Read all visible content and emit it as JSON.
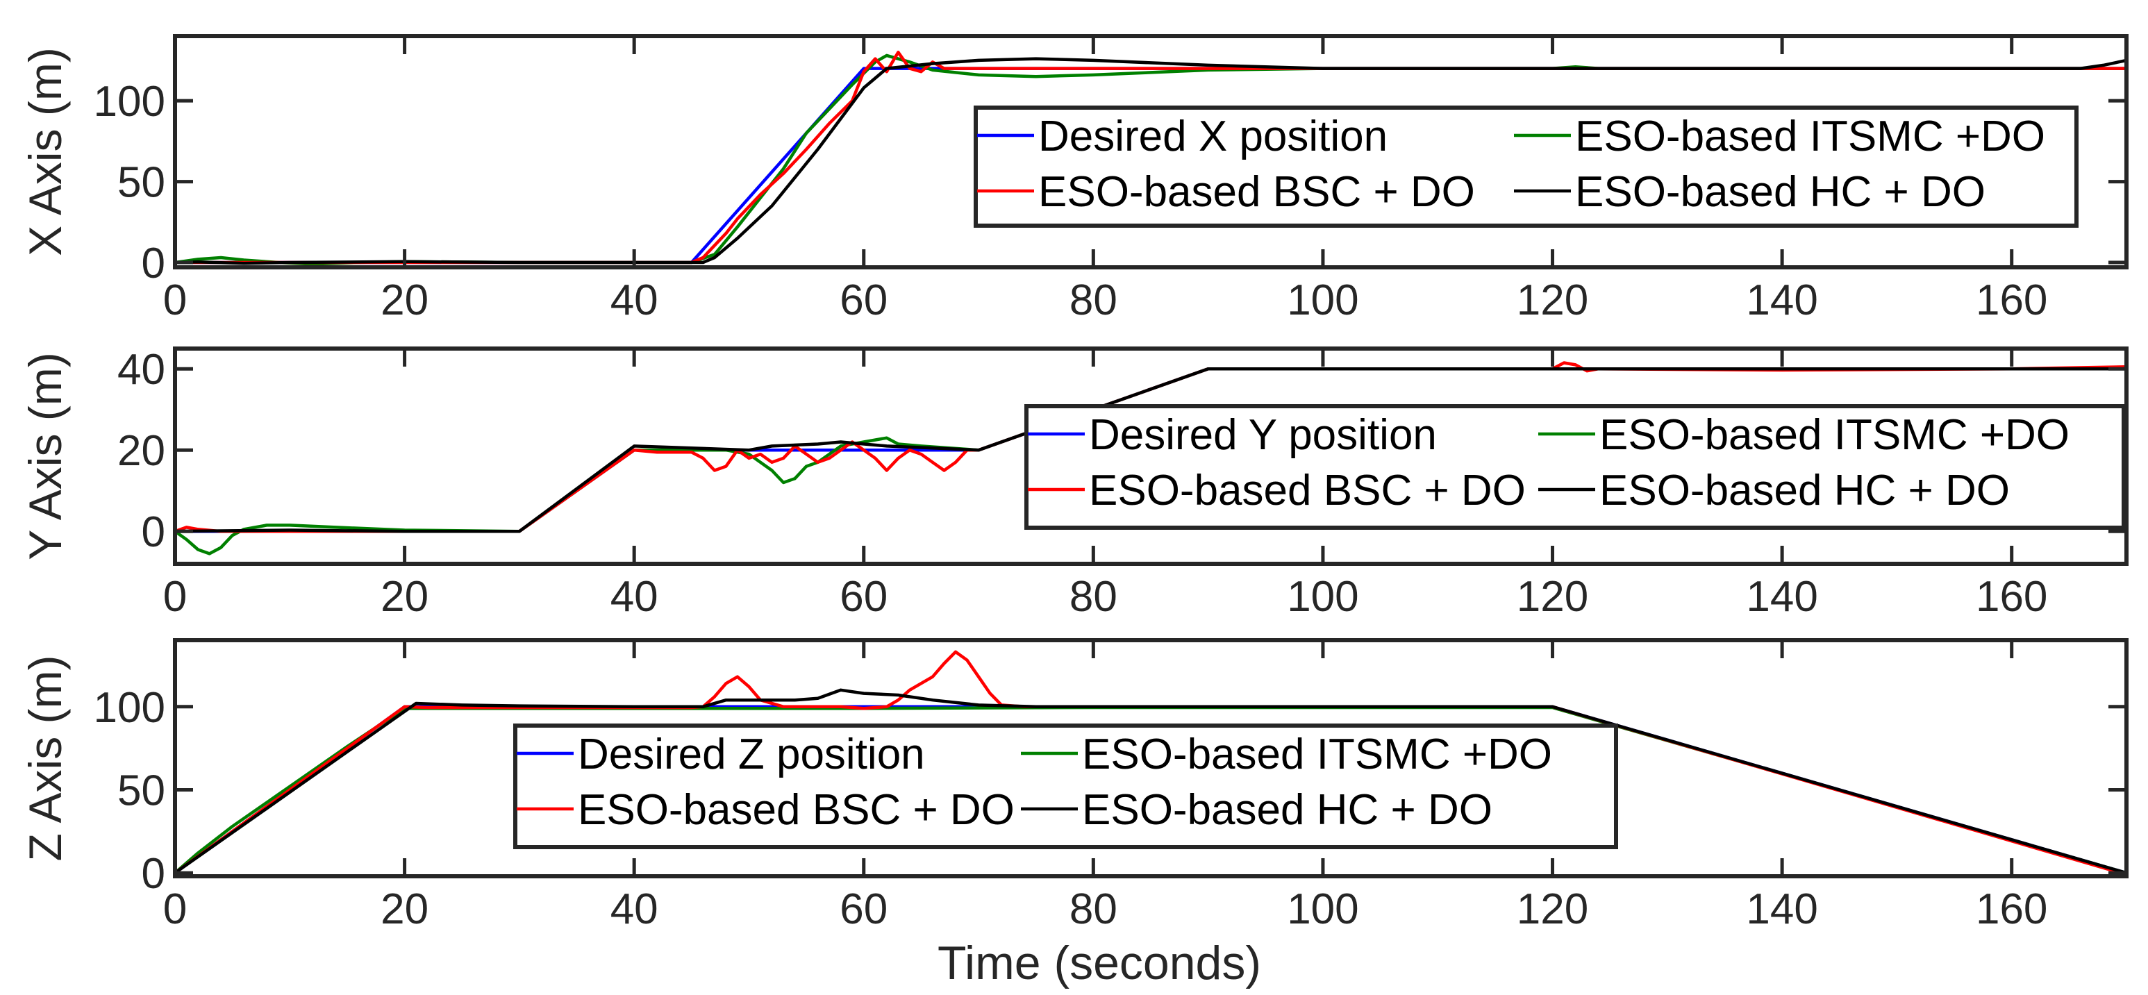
{
  "chart_data": [
    {
      "type": "line",
      "xlabel": "",
      "ylabel": "X Axis (m)",
      "xlim": [
        0,
        170
      ],
      "ylim": [
        -3,
        140
      ],
      "xticks": [
        0,
        20,
        40,
        60,
        80,
        100,
        120,
        140,
        160
      ],
      "yticks": [
        0,
        50,
        100
      ],
      "series": [
        {
          "name": "Desired X position",
          "color": "#0000ff",
          "points": [
            [
              0,
              0
            ],
            [
              45,
              0
            ],
            [
              60,
              120
            ],
            [
              170,
              120
            ]
          ]
        },
        {
          "name": "ESO-based ITSMC +DO",
          "color": "#008000",
          "points": [
            [
              0,
              0
            ],
            [
              2,
              2
            ],
            [
              4,
              3
            ],
            [
              6,
              1.5
            ],
            [
              9,
              0
            ],
            [
              12,
              -1
            ],
            [
              16,
              0
            ],
            [
              20,
              0.5
            ],
            [
              30,
              0
            ],
            [
              45,
              0
            ],
            [
              47,
              5
            ],
            [
              49,
              22
            ],
            [
              51,
              40
            ],
            [
              53,
              58
            ],
            [
              55,
              80
            ],
            [
              57,
              95
            ],
            [
              59,
              110
            ],
            [
              61,
              124
            ],
            [
              62,
              128
            ],
            [
              64,
              124
            ],
            [
              66,
              119
            ],
            [
              70,
              116
            ],
            [
              75,
              115
            ],
            [
              80,
              116
            ],
            [
              90,
              119
            ],
            [
              100,
              120
            ],
            [
              120,
              120
            ],
            [
              122,
              121
            ],
            [
              124,
              120
            ],
            [
              170,
              120
            ]
          ]
        },
        {
          "name": "ESO-based BSC + DO",
          "color": "#ff0000",
          "points": [
            [
              0,
              0
            ],
            [
              45,
              0
            ],
            [
              46,
              3
            ],
            [
              48,
              18
            ],
            [
              49,
              27
            ],
            [
              51,
              42
            ],
            [
              53,
              55
            ],
            [
              55,
              70
            ],
            [
              57,
              86
            ],
            [
              59,
              100
            ],
            [
              60,
              118
            ],
            [
              61,
              126
            ],
            [
              62,
              118
            ],
            [
              63,
              130
            ],
            [
              64,
              120
            ],
            [
              65,
              118
            ],
            [
              66,
              124
            ],
            [
              67,
              120
            ],
            [
              70,
              120
            ],
            [
              170,
              120
            ]
          ]
        },
        {
          "name": "ESO-based HC + DO",
          "color": "#000000",
          "points": [
            [
              0,
              0
            ],
            [
              2,
              0.3
            ],
            [
              6,
              -0.5
            ],
            [
              10,
              0
            ],
            [
              20,
              0.5
            ],
            [
              30,
              0
            ],
            [
              46,
              0
            ],
            [
              47,
              3
            ],
            [
              49,
              15
            ],
            [
              52,
              35
            ],
            [
              56,
              70
            ],
            [
              60,
              108
            ],
            [
              62,
              120
            ],
            [
              66,
              123
            ],
            [
              70,
              125
            ],
            [
              75,
              126
            ],
            [
              80,
              125
            ],
            [
              90,
              122
            ],
            [
              100,
              120
            ],
            [
              130,
              120
            ],
            [
              160,
              120
            ],
            [
              166,
              120
            ],
            [
              168,
              122
            ],
            [
              170,
              125
            ]
          ]
        }
      ],
      "legend": {
        "location": "right",
        "entries": [
          "Desired X position",
          "ESO-based ITSMC +DO",
          "ESO-based BSC + DO",
          "ESO-based HC + DO"
        ]
      }
    },
    {
      "type": "line",
      "xlabel": "",
      "ylabel": "Y Axis (m)",
      "xlim": [
        0,
        170
      ],
      "ylim": [
        -8,
        45
      ],
      "xticks": [
        0,
        20,
        40,
        60,
        80,
        100,
        120,
        140,
        160
      ],
      "yticks": [
        0,
        20,
        40
      ],
      "series": [
        {
          "name": "Desired Y position",
          "color": "#0000ff",
          "points": [
            [
              0,
              0
            ],
            [
              30,
              0
            ],
            [
              40,
              20
            ],
            [
              70,
              20
            ],
            [
              90,
              40
            ],
            [
              170,
              40
            ]
          ]
        },
        {
          "name": "ESO-based ITSMC +DO",
          "color": "#008000",
          "points": [
            [
              0,
              0
            ],
            [
              1,
              -2
            ],
            [
              2,
              -4.5
            ],
            [
              3,
              -5.5
            ],
            [
              4,
              -4
            ],
            [
              5,
              -1
            ],
            [
              6,
              0.5
            ],
            [
              8,
              1.5
            ],
            [
              10,
              1.5
            ],
            [
              14,
              1
            ],
            [
              20,
              0.3
            ],
            [
              30,
              0
            ],
            [
              34,
              8
            ],
            [
              38,
              16
            ],
            [
              40,
              20
            ],
            [
              45,
              20
            ],
            [
              48,
              20
            ],
            [
              50,
              19
            ],
            [
              51,
              17
            ],
            [
              52,
              15
            ],
            [
              53,
              12
            ],
            [
              54,
              13
            ],
            [
              55,
              16
            ],
            [
              56,
              17
            ],
            [
              57,
              19
            ],
            [
              58,
              21
            ],
            [
              60,
              22
            ],
            [
              62,
              23
            ],
            [
              63,
              21.5
            ],
            [
              65,
              21
            ],
            [
              70,
              20
            ],
            [
              74,
              24
            ],
            [
              80,
              30
            ],
            [
              85,
              35
            ],
            [
              90,
              40
            ],
            [
              170,
              40
            ]
          ]
        },
        {
          "name": "ESO-based BSC + DO",
          "color": "#ff0000",
          "points": [
            [
              0,
              0
            ],
            [
              1,
              1
            ],
            [
              2,
              0.5
            ],
            [
              4,
              0
            ],
            [
              30,
              0
            ],
            [
              40,
              20
            ],
            [
              42,
              19.5
            ],
            [
              45,
              19.5
            ],
            [
              46,
              18
            ],
            [
              47,
              15
            ],
            [
              48,
              16
            ],
            [
              49,
              20
            ],
            [
              50,
              18
            ],
            [
              51,
              19
            ],
            [
              52,
              17
            ],
            [
              53,
              18
            ],
            [
              54,
              21
            ],
            [
              55,
              19
            ],
            [
              56,
              17
            ],
            [
              57,
              18
            ],
            [
              58,
              20
            ],
            [
              59,
              22
            ],
            [
              60,
              20
            ],
            [
              61,
              18
            ],
            [
              62,
              15
            ],
            [
              63,
              18
            ],
            [
              64,
              20
            ],
            [
              65,
              19
            ],
            [
              66,
              17
            ],
            [
              67,
              15
            ],
            [
              68,
              17
            ],
            [
              69,
              20
            ],
            [
              70,
              20
            ],
            [
              90,
              40
            ],
            [
              120,
              40
            ],
            [
              121,
              41.5
            ],
            [
              122,
              41
            ],
            [
              123,
              39.5
            ],
            [
              124,
              40
            ],
            [
              140,
              39.7
            ],
            [
              160,
              40
            ],
            [
              170,
              40.5
            ]
          ]
        },
        {
          "name": "ESO-based HC + DO",
          "color": "#000000",
          "points": [
            [
              0,
              0
            ],
            [
              10,
              0.3
            ],
            [
              20,
              0
            ],
            [
              30,
              0
            ],
            [
              40,
              21
            ],
            [
              45,
              20.5
            ],
            [
              50,
              20
            ],
            [
              52,
              21
            ],
            [
              56,
              21.5
            ],
            [
              58,
              22
            ],
            [
              62,
              21
            ],
            [
              66,
              20.5
            ],
            [
              70,
              20
            ],
            [
              90,
              40
            ],
            [
              130,
              40
            ],
            [
              150,
              40
            ],
            [
              170,
              40
            ]
          ]
        }
      ],
      "legend": {
        "location": "right",
        "entries": [
          "Desired Y position",
          "ESO-based ITSMC +DO",
          "ESO-based BSC + DO",
          "ESO-based HC + DO"
        ]
      }
    },
    {
      "type": "line",
      "xlabel": "Time (seconds)",
      "ylabel": "Z Axis (m)",
      "xlim": [
        0,
        170
      ],
      "ylim": [
        -2,
        140
      ],
      "xticks": [
        0,
        20,
        40,
        60,
        80,
        100,
        120,
        140,
        160
      ],
      "yticks": [
        0,
        50,
        100
      ],
      "series": [
        {
          "name": "Desired Z position",
          "color": "#0000ff",
          "points": [
            [
              0,
              0
            ],
            [
              20,
              100
            ],
            [
              120,
              100
            ],
            [
              170,
              0
            ]
          ]
        },
        {
          "name": "ESO-based ITSMC +DO",
          "color": "#008000",
          "points": [
            [
              0,
              0
            ],
            [
              2,
              12
            ],
            [
              5,
              28
            ],
            [
              10,
              52
            ],
            [
              15,
              76
            ],
            [
              20,
              99
            ],
            [
              22,
              99
            ],
            [
              30,
              99
            ],
            [
              40,
              99
            ],
            [
              60,
              99
            ],
            [
              80,
              99.5
            ],
            [
              100,
              99.5
            ],
            [
              120,
              99.5
            ],
            [
              170,
              0
            ]
          ]
        },
        {
          "name": "ESO-based BSC + DO",
          "color": "#ff0000",
          "points": [
            [
              0,
              0
            ],
            [
              20,
              100
            ],
            [
              22,
              99.5
            ],
            [
              30,
              99.5
            ],
            [
              45,
              99.5
            ],
            [
              46,
              100
            ],
            [
              47,
              106
            ],
            [
              48,
              114
            ],
            [
              49,
              118
            ],
            [
              50,
              112
            ],
            [
              51,
              104
            ],
            [
              53,
              100
            ],
            [
              55,
              100
            ],
            [
              58,
              100
            ],
            [
              60,
              99
            ],
            [
              62,
              100
            ],
            [
              63,
              104
            ],
            [
              64,
              110
            ],
            [
              66,
              118
            ],
            [
              67,
              126
            ],
            [
              68,
              133
            ],
            [
              69,
              128
            ],
            [
              70,
              118
            ],
            [
              71,
              108
            ],
            [
              72,
              101
            ],
            [
              74,
              100
            ],
            [
              100,
              100
            ],
            [
              120,
              100
            ],
            [
              170,
              -1
            ]
          ]
        },
        {
          "name": "ESO-based HC + DO",
          "color": "#000000",
          "points": [
            [
              0,
              0
            ],
            [
              21,
              102
            ],
            [
              25,
              101
            ],
            [
              30,
              100.5
            ],
            [
              40,
              100
            ],
            [
              46,
              100
            ],
            [
              48,
              104
            ],
            [
              51,
              104
            ],
            [
              54,
              104
            ],
            [
              56,
              105
            ],
            [
              58,
              110
            ],
            [
              60,
              108
            ],
            [
              63,
              107
            ],
            [
              66,
              104
            ],
            [
              70,
              101
            ],
            [
              75,
              100
            ],
            [
              100,
              100
            ],
            [
              120,
              100
            ],
            [
              170,
              0
            ]
          ]
        }
      ],
      "legend": {
        "location": "center",
        "entries": [
          "Desired Z position",
          "ESO-based ITSMC +DO",
          "ESO-based BSC + DO",
          "ESO-based HC + DO"
        ]
      }
    }
  ]
}
